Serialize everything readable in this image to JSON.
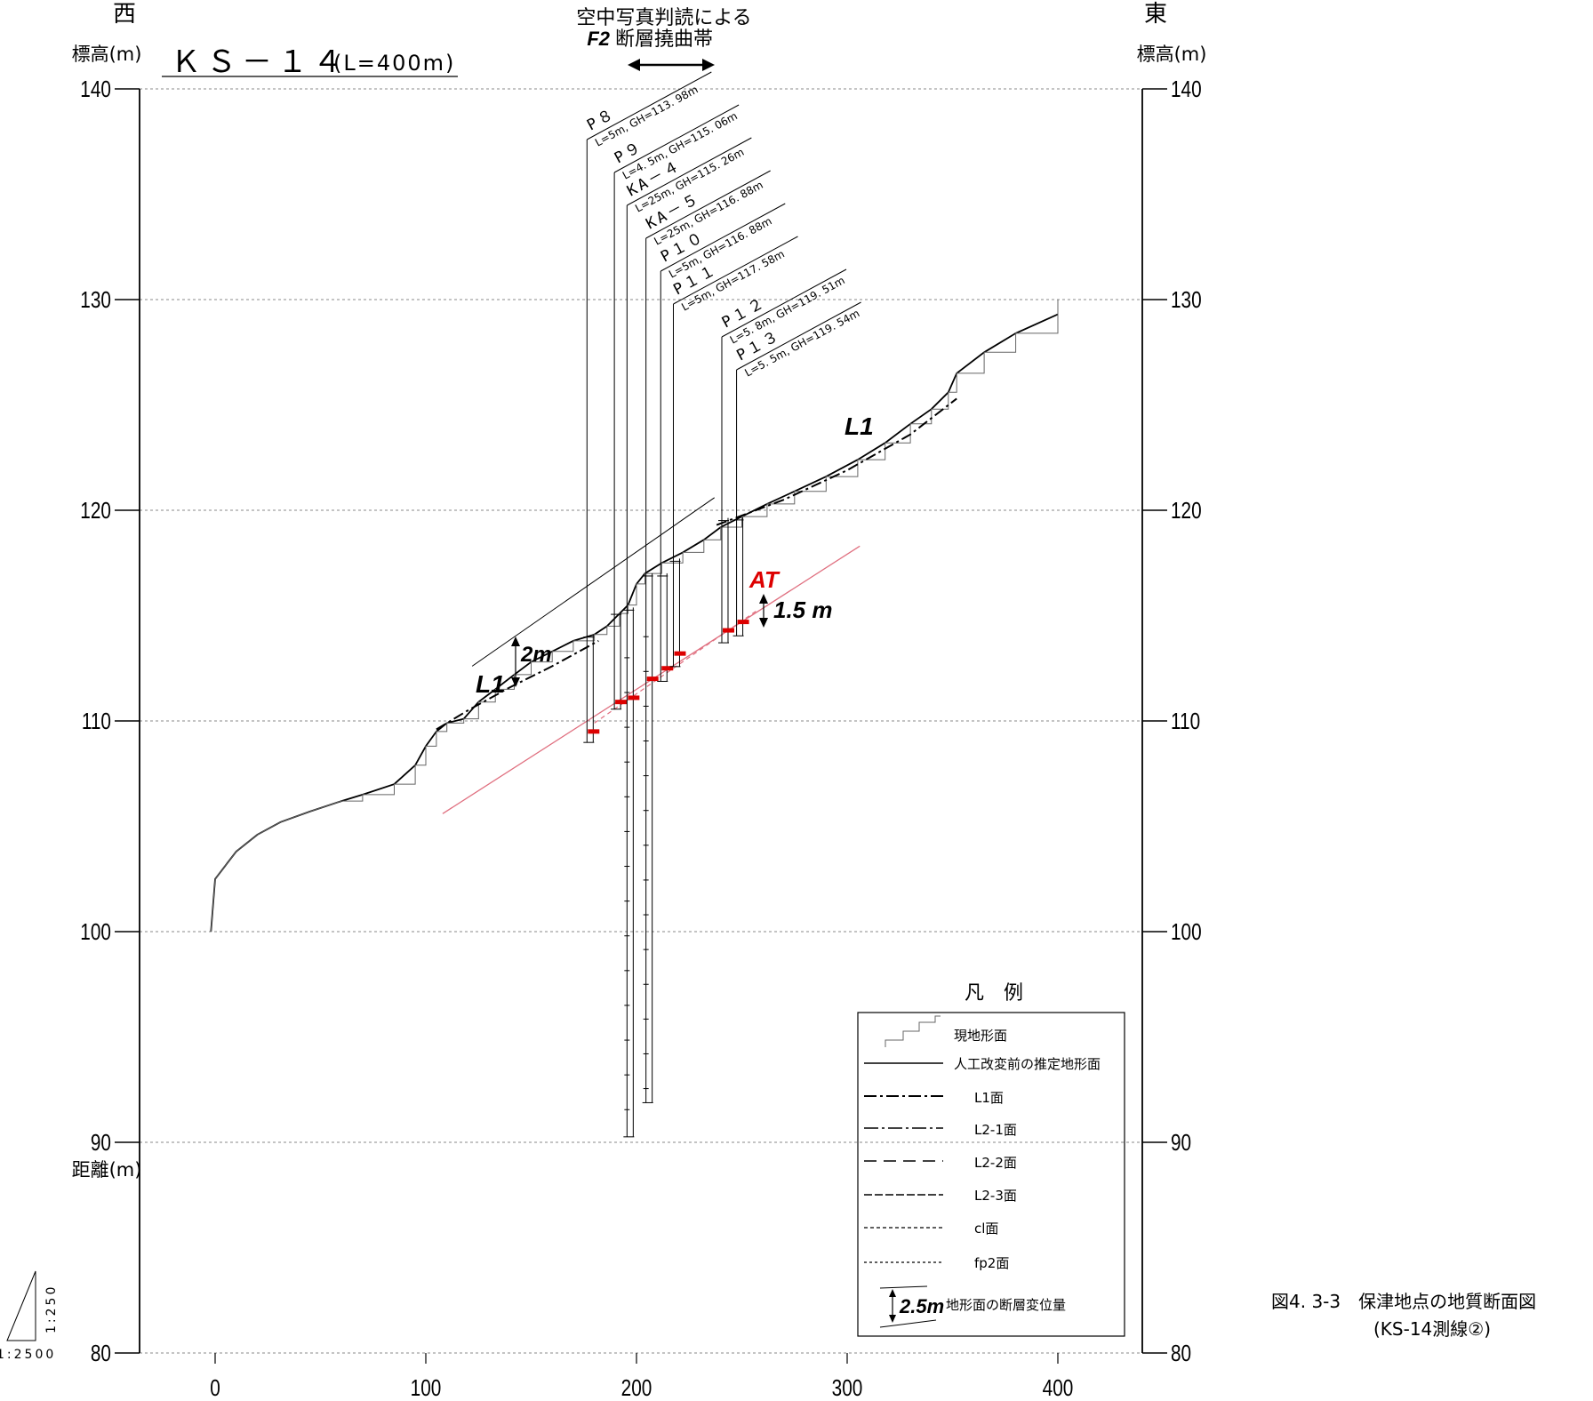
{
  "direction": {
    "west": "西",
    "east": "東"
  },
  "axis": {
    "left_label": "標高(m)",
    "right_label": "標高(m)",
    "bottom_label": "距離(m)",
    "y_ticks": [
      140,
      130,
      120,
      110,
      100,
      90,
      80
    ],
    "x_ticks": [
      0,
      100,
      200,
      300,
      400
    ]
  },
  "section_title": {
    "main": "ＫＳ－１４",
    "sub": "(L=400m)"
  },
  "fault_zone": {
    "line1": "空中写真判読による",
    "line2_fault": "F2",
    "line2_rest": "断層撓曲帯"
  },
  "boreholes": [
    {
      "name": "P８",
      "info": "L=5m, GH=113. 98m",
      "x": 176.5,
      "top": 113.98,
      "bottom": 108.98
    },
    {
      "name": "P９",
      "info": "L=4. 5m, GH=115. 06m",
      "x": 189.5,
      "top": 115.06,
      "bottom": 110.56
    },
    {
      "name": "KA－４",
      "info": "L=25m, GH=115. 26m",
      "x": 195.5,
      "top": 115.26,
      "bottom": 90.26
    },
    {
      "name": "KA－５",
      "info": "L=25m, GH=116. 88m",
      "x": 204.5,
      "top": 116.88,
      "bottom": 91.88
    },
    {
      "name": "P１０",
      "info": "L=5m, GH=116. 88m",
      "x": 211.5,
      "top": 116.88,
      "bottom": 111.88
    },
    {
      "name": "P１１",
      "info": "L=5m, GH=117. 58m",
      "x": 217.5,
      "top": 117.58,
      "bottom": 112.58
    },
    {
      "name": "P１２",
      "info": "L=5. 8m, GH=119. 51m",
      "x": 240.5,
      "top": 119.51,
      "bottom": 113.71
    },
    {
      "name": "P１３",
      "info": "L=5. 5m, GH=119. 54m",
      "x": 247.5,
      "top": 119.54,
      "bottom": 114.04
    }
  ],
  "annotations": {
    "l1_west": "L1",
    "l1_east": "L1",
    "offset_2m": "2m",
    "at_label": "AT",
    "offset_1_5m": "1.5 m"
  },
  "legend": {
    "title": "凡　例",
    "items": [
      {
        "type": "stair",
        "label": "現地形面"
      },
      {
        "type": "solid",
        "label": "人工改変前の推定地形面"
      },
      {
        "type": "dashdot",
        "label": "L1面"
      },
      {
        "type": "dashdot2",
        "label": "L2-1面"
      },
      {
        "type": "dash-long",
        "label": "L2-2面"
      },
      {
        "type": "dash-med",
        "label": "L2-3面"
      },
      {
        "type": "dot",
        "label": "cl面"
      },
      {
        "type": "dot2",
        "label": "fp2面"
      },
      {
        "type": "offset",
        "value": "2.5m",
        "label": "地形面の断層変位量"
      }
    ]
  },
  "scale": {
    "vertical": "1:250",
    "horizontal": "1:2500"
  },
  "caption": {
    "line1": "図4. 3-3　保津地点の地質断面図",
    "line2": "(KS-14測線②)"
  },
  "colors": {
    "at_line": "#e07080",
    "at_marker": "#dd0000",
    "at_text": "#dd0000",
    "grid": "#888888"
  }
}
